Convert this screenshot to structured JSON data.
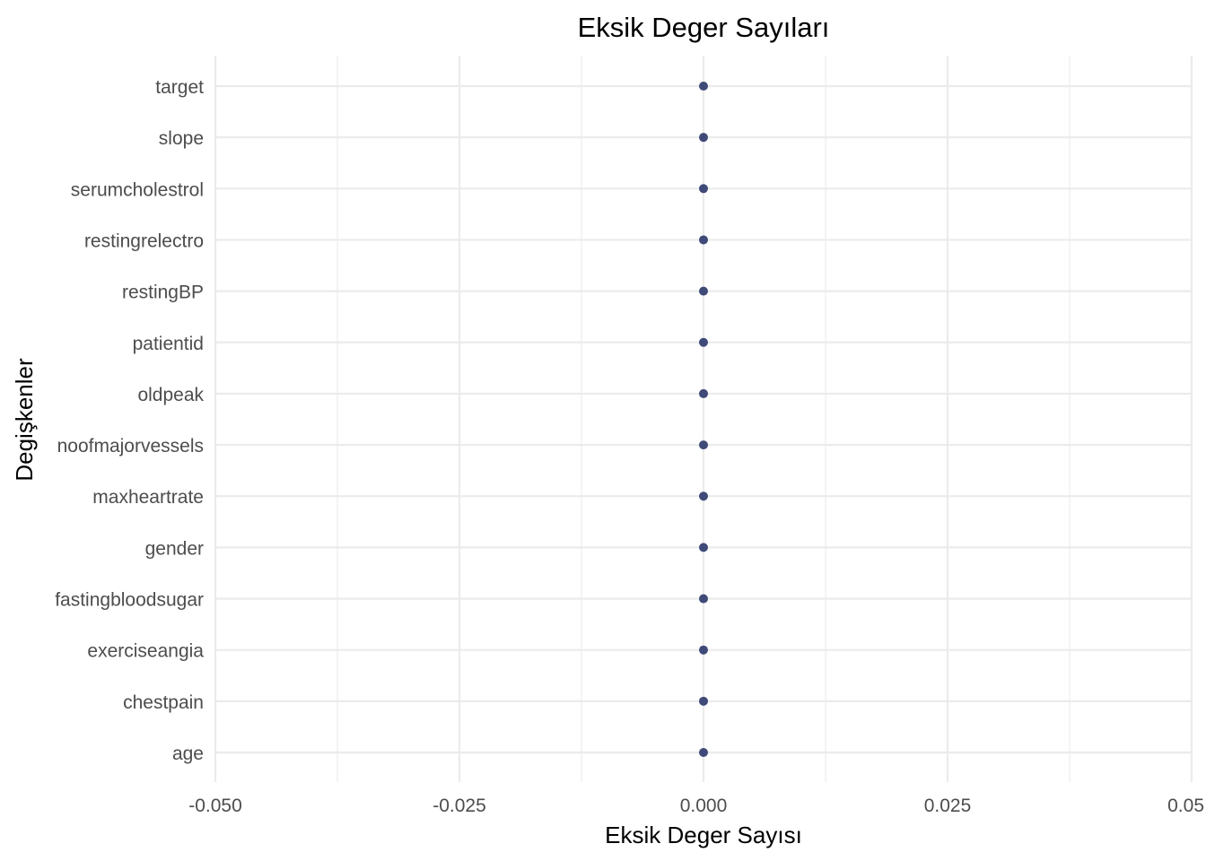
{
  "chart_data": {
    "type": "scatter",
    "title": "Eksik Deger Sayıları",
    "xlabel": "Eksik Deger Sayısı",
    "ylabel": "Degişkenler",
    "xlim": [
      -0.05,
      0.05
    ],
    "x_ticks": [
      -0.05,
      -0.025,
      0.0,
      0.025,
      0.05
    ],
    "x_tick_labels": [
      "-0.050",
      "-0.025",
      "0.000",
      "0.025",
      "0.05"
    ],
    "categories": [
      "target",
      "slope",
      "serumcholestrol",
      "restingrelectro",
      "restingBP",
      "patientid",
      "oldpeak",
      "noofmajorvessels",
      "maxheartrate",
      "gender",
      "fastingbloodsugar",
      "exerciseangia",
      "chestpain",
      "age"
    ],
    "values": [
      0,
      0,
      0,
      0,
      0,
      0,
      0,
      0,
      0,
      0,
      0,
      0,
      0,
      0
    ],
    "point_color": "#3f4a78",
    "grid": true
  }
}
